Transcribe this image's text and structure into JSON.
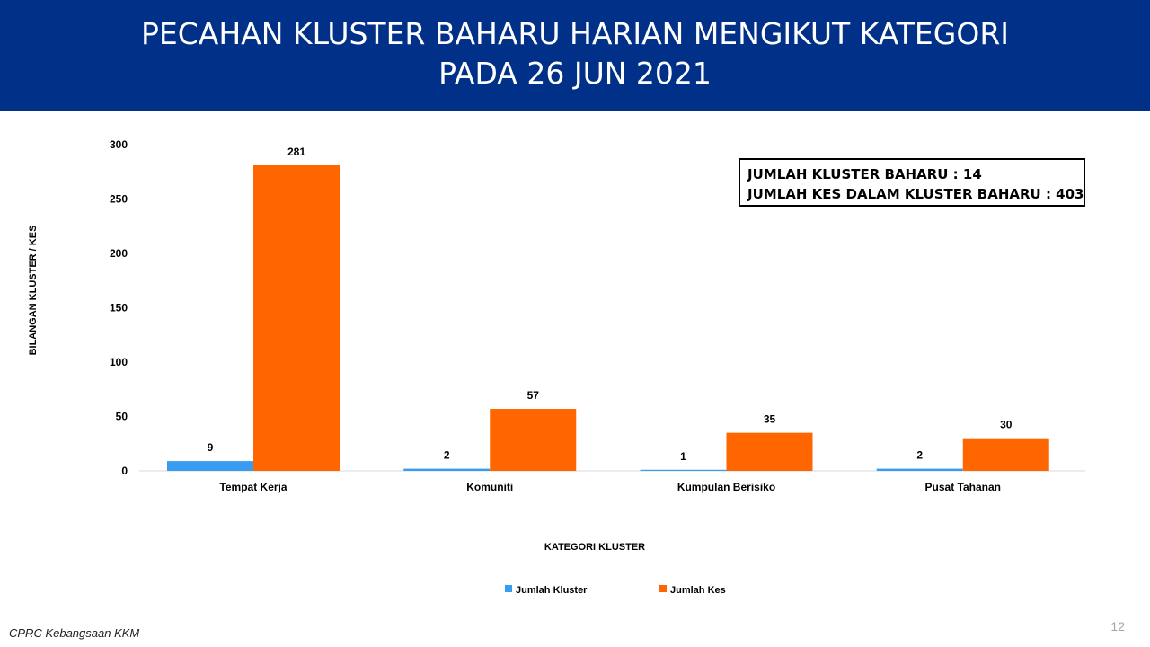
{
  "slide": {
    "title_line1": "PECAHAN KLUSTER BAHARU HARIAN MENGIKUT KATEGORI",
    "title_line2": "PADA 26 JUN 2021",
    "info_line1": "JUMLAH KLUSTER BAHARU : 14",
    "info_line2": "JUMLAH KES DALAM KLUSTER BAHARU : 403",
    "footer": "CPRC Kebangsaan KKM",
    "page_number": "12",
    "header_color": "#003087"
  },
  "chart_data": {
    "type": "bar",
    "xlabel": "KATEGORI KLUSTER",
    "ylabel": "BILANGAN KLUSTER / KES",
    "ylim": [
      0,
      300
    ],
    "yticks": [
      0,
      50,
      100,
      150,
      200,
      250,
      300
    ],
    "categories": [
      "Tempat Kerja",
      "Komuniti",
      "Kumpulan Berisiko",
      "Pusat Tahanan"
    ],
    "series": [
      {
        "name": "Jumlah Kluster",
        "color": "#3a9cf0",
        "values": [
          9,
          2,
          1,
          2
        ]
      },
      {
        "name": "Jumlah Kes",
        "color": "#ff6600",
        "values": [
          281,
          57,
          35,
          30
        ]
      }
    ],
    "grid": false,
    "legend_position": "bottom"
  }
}
